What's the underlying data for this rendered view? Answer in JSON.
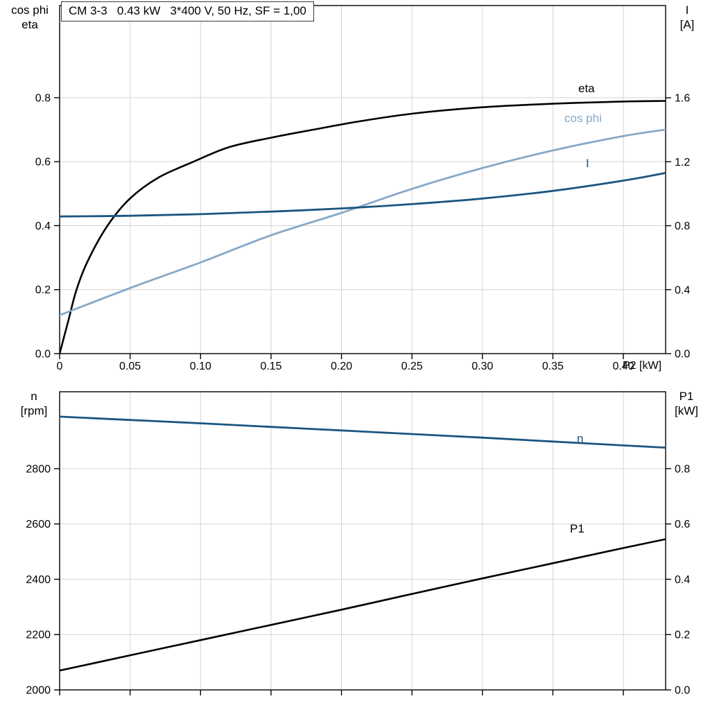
{
  "title_box": "CM 3-3   0.43 kW   3*400 V, 50 Hz, SF = 1,00",
  "axis_corner_labels": {
    "top_left_line1": "cos phi",
    "top_left_line2": "eta",
    "top_right_line1": "I",
    "top_right_line2": "[A]",
    "bottom_left_line1": "n",
    "bottom_left_line2": "[rpm]",
    "bottom_right_line1": "P1",
    "bottom_right_line2": "[kW]",
    "x_axis_label": "P2 [kW]"
  },
  "curve_labels": {
    "eta": "eta",
    "cos_phi": "cos phi",
    "current": "I",
    "speed": "n",
    "p1": "P1"
  },
  "colors": {
    "black": "#000000",
    "light_blue": "#85a8c7",
    "dark_blue": "#1a5580",
    "grid": "#d4d4d4",
    "frame": "#000000"
  },
  "chart_data": [
    {
      "type": "line",
      "name": "motor-electrical-curves",
      "x": {
        "label": "P2 [kW]",
        "min": 0,
        "max": 0.43,
        "ticks": [
          0,
          0.05,
          0.1,
          0.15,
          0.2,
          0.25,
          0.3,
          0.35,
          0.4
        ],
        "tick_labels": [
          "0",
          "0.05",
          "0.10",
          "0.15",
          "0.20",
          "0.25",
          "0.30",
          "0.35",
          "0.40"
        ],
        "show_tick_labels": true
      },
      "y_left": {
        "label": "cos phi / eta",
        "min": 0,
        "max": 1.088,
        "ticks": [
          0,
          0.2,
          0.4,
          0.6,
          0.8
        ],
        "tick_labels": [
          "0.0",
          "0.2",
          "0.4",
          "0.6",
          "0.8"
        ]
      },
      "y_right": {
        "label": "I [A]",
        "min": 0,
        "max": 2.177,
        "ticks": [
          0,
          0.4,
          0.8,
          1.2,
          1.6
        ],
        "tick_labels": [
          "0.0",
          "0.4",
          "0.8",
          "1.2",
          "1.6"
        ]
      },
      "series": [
        {
          "name": "eta",
          "axis": "left",
          "color": "#000000",
          "width": 2.6,
          "points": [
            [
              0,
              0
            ],
            [
              0.006,
              0.1
            ],
            [
              0.012,
              0.2
            ],
            [
              0.02,
              0.29
            ],
            [
              0.034,
              0.4
            ],
            [
              0.05,
              0.485
            ],
            [
              0.07,
              0.55
            ],
            [
              0.095,
              0.6
            ],
            [
              0.12,
              0.645
            ],
            [
              0.15,
              0.675
            ],
            [
              0.18,
              0.7
            ],
            [
              0.21,
              0.724
            ],
            [
              0.25,
              0.75
            ],
            [
              0.3,
              0.77
            ],
            [
              0.35,
              0.781
            ],
            [
              0.4,
              0.788
            ],
            [
              0.43,
              0.79
            ]
          ]
        },
        {
          "name": "cos-phi",
          "axis": "left",
          "color": "#85a8c7",
          "width": 2.8,
          "points": [
            [
              0,
              0.12
            ],
            [
              0.05,
              0.205
            ],
            [
              0.1,
              0.285
            ],
            [
              0.15,
              0.37
            ],
            [
              0.2,
              0.44
            ],
            [
              0.25,
              0.515
            ],
            [
              0.3,
              0.58
            ],
            [
              0.35,
              0.635
            ],
            [
              0.4,
              0.68
            ],
            [
              0.43,
              0.7
            ]
          ]
        },
        {
          "name": "current",
          "axis": "right",
          "color": "#1a5580",
          "width": 2.8,
          "points": [
            [
              0,
              0.858
            ],
            [
              0.05,
              0.862
            ],
            [
              0.1,
              0.872
            ],
            [
              0.15,
              0.888
            ],
            [
              0.2,
              0.908
            ],
            [
              0.25,
              0.935
            ],
            [
              0.3,
              0.97
            ],
            [
              0.35,
              1.018
            ],
            [
              0.4,
              1.082
            ],
            [
              0.43,
              1.13
            ]
          ]
        }
      ]
    },
    {
      "type": "line",
      "name": "speed-power-curves",
      "x": {
        "label": "",
        "min": 0,
        "max": 0.43,
        "ticks": [
          0,
          0.05,
          0.1,
          0.15,
          0.2,
          0.25,
          0.3,
          0.35,
          0.4
        ],
        "tick_labels": [],
        "show_tick_labels": false
      },
      "y_left": {
        "label": "n [rpm]",
        "min": 2000,
        "max": 3078,
        "ticks": [
          2000,
          2200,
          2400,
          2600,
          2800
        ],
        "tick_labels": [
          "2000",
          "2200",
          "2400",
          "2600",
          "2800"
        ]
      },
      "y_right": {
        "label": "P1 [kW]",
        "min": 0,
        "max": 1.078,
        "ticks": [
          0,
          0.2,
          0.4,
          0.6,
          0.8
        ],
        "tick_labels": [
          "0.0",
          "0.2",
          "0.4",
          "0.6",
          "0.8"
        ]
      },
      "series": [
        {
          "name": "speed",
          "axis": "left",
          "color": "#1a5580",
          "width": 2.8,
          "points": [
            [
              0,
              2988
            ],
            [
              0.05,
              2976
            ],
            [
              0.1,
              2964
            ],
            [
              0.15,
              2951
            ],
            [
              0.2,
              2938
            ],
            [
              0.25,
              2925
            ],
            [
              0.3,
              2912
            ],
            [
              0.35,
              2898
            ],
            [
              0.4,
              2884
            ],
            [
              0.43,
              2876
            ]
          ]
        },
        {
          "name": "p1",
          "axis": "right",
          "color": "#000000",
          "width": 2.6,
          "points": [
            [
              0,
              0.07
            ],
            [
              0.05,
              0.125
            ],
            [
              0.1,
              0.18
            ],
            [
              0.15,
              0.235
            ],
            [
              0.2,
              0.29
            ],
            [
              0.25,
              0.347
            ],
            [
              0.3,
              0.403
            ],
            [
              0.35,
              0.458
            ],
            [
              0.4,
              0.513
            ],
            [
              0.43,
              0.545
            ]
          ]
        }
      ]
    }
  ]
}
